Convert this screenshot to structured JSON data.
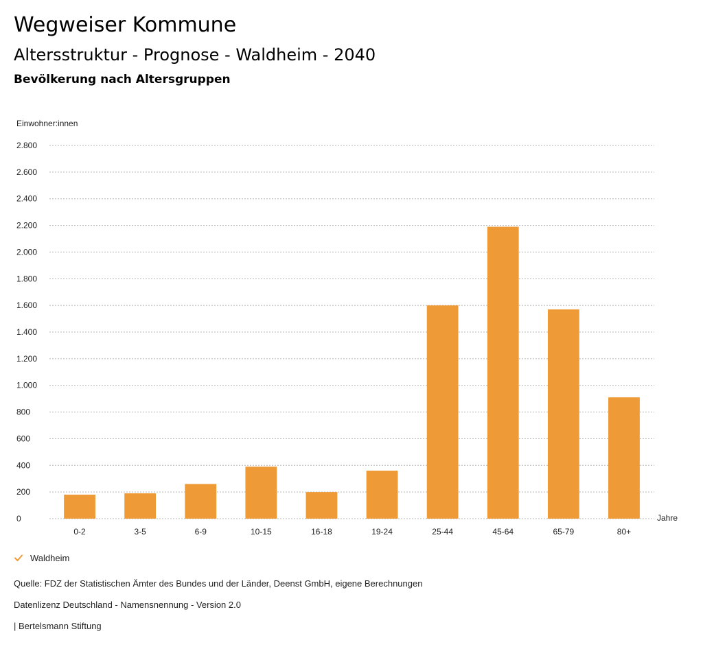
{
  "header": {
    "title": "Wegweiser Kommune",
    "subtitle": "Altersstruktur - Prognose - Waldheim - 2040",
    "chart_heading": "Bevölkerung nach Altersgruppen"
  },
  "colors": {
    "bar": "#ee9a37",
    "grid": "#b5b5b5",
    "text": "#222222"
  },
  "chart_data": {
    "type": "bar",
    "title": "Bevölkerung nach Altersgruppen",
    "ylabel": "Einwohner:innen",
    "xlabel": "Jahre",
    "categories": [
      "0-2",
      "3-5",
      "6-9",
      "10-15",
      "16-18",
      "19-24",
      "25-44",
      "45-64",
      "65-79",
      "80+"
    ],
    "series": [
      {
        "name": "Waldheim",
        "values": [
          180,
          190,
          260,
          390,
          200,
          360,
          1600,
          2190,
          1570,
          910
        ]
      }
    ],
    "ylim": [
      0,
      2800
    ],
    "yticks": [
      0,
      200,
      400,
      600,
      800,
      1000,
      1200,
      1400,
      1600,
      1800,
      2000,
      2200,
      2400,
      2600,
      2800
    ],
    "ytick_labels": [
      "0",
      "200",
      "400",
      "600",
      "800",
      "1.000",
      "1.200",
      "1.400",
      "1.600",
      "1.800",
      "2.000",
      "2.200",
      "2.400",
      "2.600",
      "2.800"
    ],
    "grid": true,
    "legend_position": "bottom-left"
  },
  "legend": {
    "items": [
      {
        "label": "Waldheim",
        "icon": "check-icon"
      }
    ]
  },
  "footer": {
    "source": "Quelle: FDZ der Statistischen Ämter des Bundes und der Länder, Deenst GmbH, eigene Berechnungen",
    "license": "Datenlizenz Deutschland - Namensnennung - Version 2.0",
    "brand": "| Bertelsmann Stiftung"
  }
}
